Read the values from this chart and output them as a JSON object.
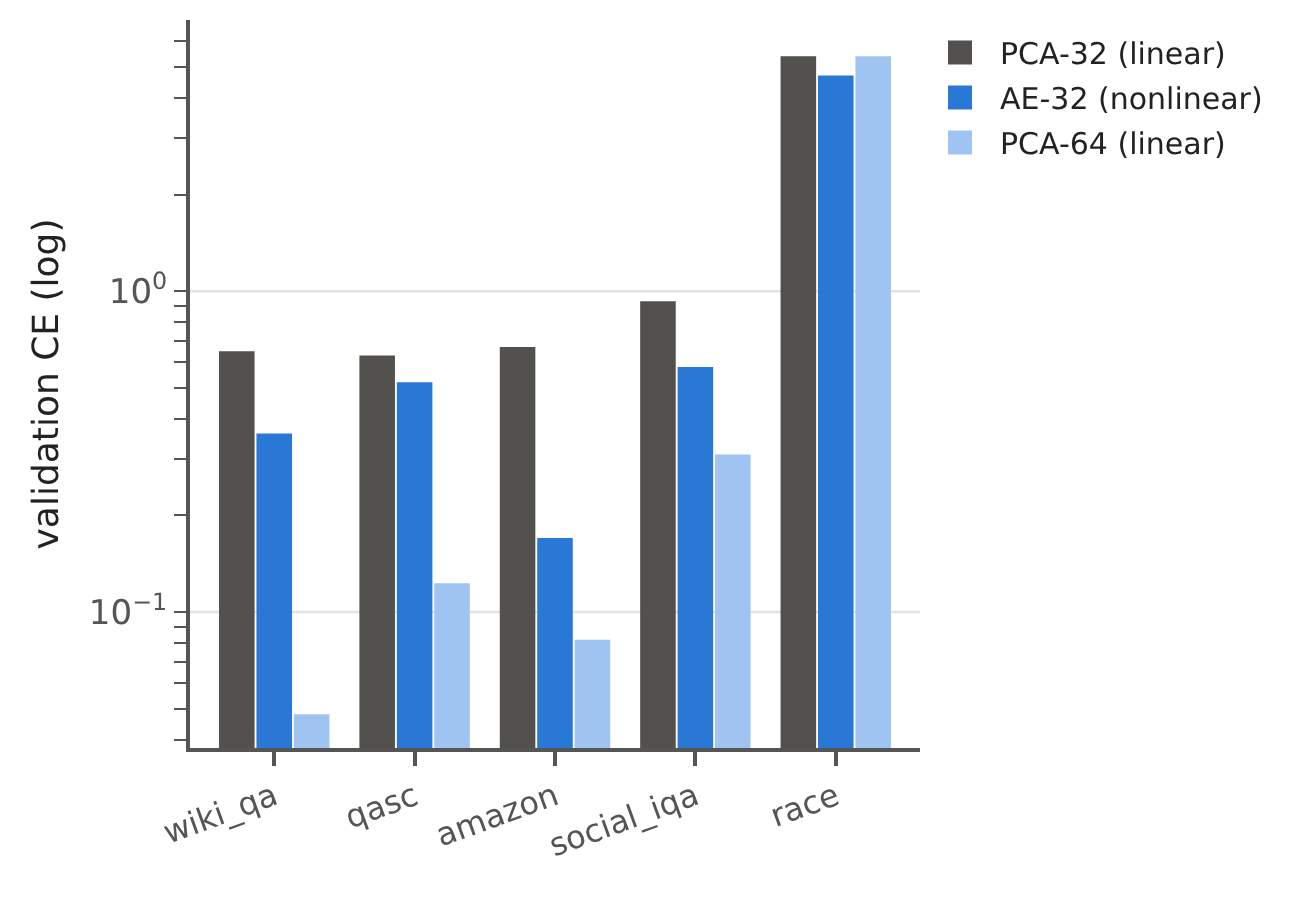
{
  "chart_data": {
    "type": "bar",
    "ylabel": "validation CE (log)",
    "categories": [
      "wiki_qa",
      "qasc",
      "amazon",
      "social_iqa",
      "race"
    ],
    "series": [
      {
        "name": "PCA-32 (linear)",
        "color": "#52514d",
        "values": [
          0.65,
          0.63,
          0.67,
          0.93,
          5.4
        ]
      },
      {
        "name": "AE-32 (nonlinear)",
        "color": "#2a78d6",
        "values": [
          0.36,
          0.52,
          0.17,
          0.58,
          4.7
        ]
      },
      {
        "name": "PCA-64 (linear)",
        "color": "#a0c4f2",
        "values": [
          0.048,
          0.123,
          0.082,
          0.31,
          5.4
        ]
      }
    ],
    "log": "y",
    "ylim": [
      0.0377,
      7
    ],
    "yticks": [
      {
        "value": 0.04,
        "label": null
      },
      {
        "value": 0.05,
        "label": null
      },
      {
        "value": 0.06,
        "label": null
      },
      {
        "value": 0.07,
        "label": null
      },
      {
        "value": 0.08,
        "label": null
      },
      {
        "value": 0.09,
        "label": null
      },
      {
        "value": 0.1,
        "label": "10$^{−1}$"
      },
      {
        "value": 0.2,
        "label": null
      },
      {
        "value": 0.3,
        "label": null
      },
      {
        "value": 0.4,
        "label": null
      },
      {
        "value": 0.5,
        "label": null
      },
      {
        "value": 0.6,
        "label": null
      },
      {
        "value": 0.7,
        "label": null
      },
      {
        "value": 0.8,
        "label": null
      },
      {
        "value": 0.9,
        "label": null
      },
      {
        "value": 1,
        "label": "10$^{0}$"
      },
      {
        "value": 2,
        "label": null
      },
      {
        "value": 3,
        "label": null
      },
      {
        "value": 4,
        "label": null
      },
      {
        "value": 5,
        "label": null
      },
      {
        "value": 6,
        "label": null
      }
    ],
    "grid": "y",
    "legend": "top right"
  }
}
